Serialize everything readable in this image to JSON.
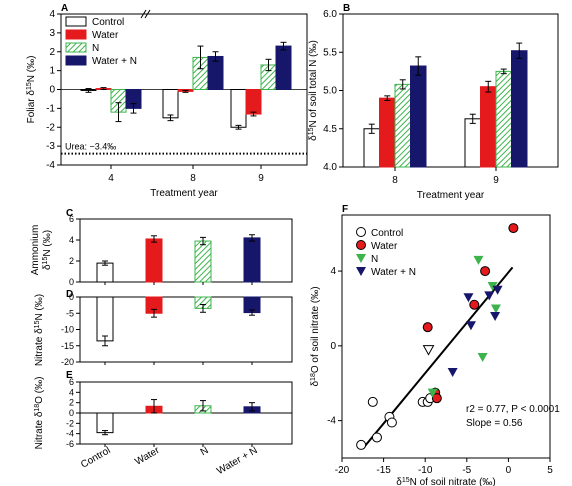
{
  "colors": {
    "control": "#ffffff",
    "water": "#e41a1c",
    "n": "#3cb44b",
    "water_n": "#16166b",
    "axis": "#000000"
  },
  "chart_data": [
    {
      "panel": "A",
      "type": "bar",
      "categories": [
        "4",
        "8",
        "9"
      ],
      "xlabel": "Treatment year",
      "ylabel": "Foliar δ15N (‰)",
      "ylim": [
        -4,
        4
      ],
      "yticks": [
        "-4",
        "-3",
        "-2",
        "-1",
        "0",
        "1",
        "2",
        "3",
        "4"
      ],
      "legend": [
        "Control",
        "Water",
        "N",
        "Water + N"
      ],
      "legend_position": "top-left",
      "annotation": "Urea: −3.4‰",
      "reference_line": -3.4,
      "axis_break": "between 4 and 8",
      "series": [
        {
          "name": "Control",
          "values": [
            -0.05,
            -1.5,
            -2.0
          ],
          "errors": [
            0.1,
            0.15,
            0.1
          ]
        },
        {
          "name": "Water",
          "values": [
            0.05,
            -0.1,
            -1.3
          ],
          "errors": [
            0.05,
            0.05,
            0.1
          ]
        },
        {
          "name": "N",
          "values": [
            -1.2,
            1.7,
            1.3
          ],
          "errors": [
            0.5,
            0.6,
            0.3
          ]
        },
        {
          "name": "Water + N",
          "values": [
            -1.0,
            1.75,
            2.3
          ],
          "errors": [
            0.25,
            0.25,
            0.2
          ]
        }
      ]
    },
    {
      "panel": "B",
      "type": "bar",
      "categories": [
        "8",
        "9"
      ],
      "xlabel": "Treatment year",
      "ylabel": "δ15N of soil total N (‰)",
      "ylim": [
        4.0,
        6.0
      ],
      "yticks": [
        "4.0",
        "4.5",
        "5.0",
        "5.5",
        "6.0"
      ],
      "series": [
        {
          "name": "Control",
          "values": [
            4.5,
            4.63
          ],
          "errors": [
            0.06,
            0.06
          ]
        },
        {
          "name": "Water",
          "values": [
            4.9,
            5.05
          ],
          "errors": [
            0.03,
            0.07
          ]
        },
        {
          "name": "N",
          "values": [
            5.08,
            5.25
          ],
          "errors": [
            0.06,
            0.03
          ]
        },
        {
          "name": "Water + N",
          "values": [
            5.32,
            5.52
          ],
          "errors": [
            0.12,
            0.1
          ]
        }
      ]
    },
    {
      "panel": "C",
      "type": "bar",
      "categories": [
        "Control",
        "Water",
        "N",
        "Water + N"
      ],
      "ylabel": "Ammonium δ15N (‰)",
      "ylim": [
        0,
        6
      ],
      "yticks": [
        "0",
        "2",
        "4",
        "6"
      ],
      "values": [
        1.8,
        4.1,
        3.9,
        4.2
      ],
      "errors": [
        0.2,
        0.3,
        0.35,
        0.3
      ]
    },
    {
      "panel": "D",
      "type": "bar",
      "categories": [
        "Control",
        "Water",
        "N",
        "Water + N"
      ],
      "ylabel": "Nitrate δ15N (‰)",
      "ylim": [
        -20,
        0
      ],
      "yticks": [
        "0",
        "-5",
        "-10",
        "-15",
        "-20"
      ],
      "values": [
        -13.5,
        -5.0,
        -3.5,
        -4.8
      ],
      "errors": [
        1.5,
        1.2,
        1.2,
        0.8
      ]
    },
    {
      "panel": "E",
      "type": "bar",
      "categories": [
        "Control",
        "Water",
        "N",
        "Water + N"
      ],
      "ylabel": "Nitrate δ18O (‰)",
      "ylim": [
        -6,
        6
      ],
      "yticks": [
        "6",
        "4",
        "2",
        "0",
        "-2",
        "-4",
        "-6"
      ],
      "values": [
        -3.8,
        1.3,
        1.4,
        1.2
      ],
      "errors": [
        0.4,
        1.3,
        1.0,
        0.8
      ]
    },
    {
      "panel": "F",
      "type": "scatter",
      "xlabel": "δ15N of soil nitrate (‰)",
      "ylabel": "δ18O of soil nitrate (‰)",
      "xlim": [
        -20,
        5
      ],
      "ylim": [
        -6,
        7
      ],
      "xticks": [
        "-20",
        "-15",
        "-10",
        "-5",
        "0",
        "5"
      ],
      "yticks": [
        "-4",
        "0",
        "4"
      ],
      "legend": [
        "Control",
        "Water",
        "N",
        "Water + N"
      ],
      "legend_position": "top-left",
      "stats_text": "r2 = 0.77, P < 0.0001",
      "slope_text": "Slope = 0.56",
      "regression": {
        "x1": -17.5,
        "y1": -5.5,
        "x2": 0.5,
        "y2": 4.2
      },
      "series": [
        {
          "name": "Control",
          "points": [
            [
              -17.7,
              -5.3
            ],
            [
              -16.3,
              -3.0
            ],
            [
              -15.8,
              -4.9
            ],
            [
              -14.3,
              -3.8
            ],
            [
              -14.0,
              -4.1
            ],
            [
              -10.3,
              -3.0
            ],
            [
              -9.7,
              -3.0
            ],
            [
              -9.4,
              -2.8
            ]
          ]
        },
        {
          "name": "Water",
          "points": [
            [
              0.6,
              6.3
            ],
            [
              -2.8,
              4.0
            ],
            [
              -4.1,
              2.2
            ],
            [
              -9.7,
              1.0
            ],
            [
              -8.8,
              -2.5
            ],
            [
              -8.6,
              -2.8
            ]
          ]
        },
        {
          "name": "N",
          "points": [
            [
              -3.6,
              4.6
            ],
            [
              -1.9,
              3.2
            ],
            [
              -1.5,
              2.0
            ],
            [
              -3.1,
              -0.6
            ],
            [
              -9.1,
              -2.5
            ],
            [
              -9.6,
              -0.2
            ]
          ]
        },
        {
          "name": "Water + N",
          "points": [
            [
              -1.3,
              3.0
            ],
            [
              -2.3,
              2.7
            ],
            [
              -4.8,
              2.6
            ],
            [
              -4.5,
              1.1
            ],
            [
              -1.6,
              1.6
            ],
            [
              -6.7,
              -1.4
            ]
          ]
        }
      ]
    }
  ]
}
